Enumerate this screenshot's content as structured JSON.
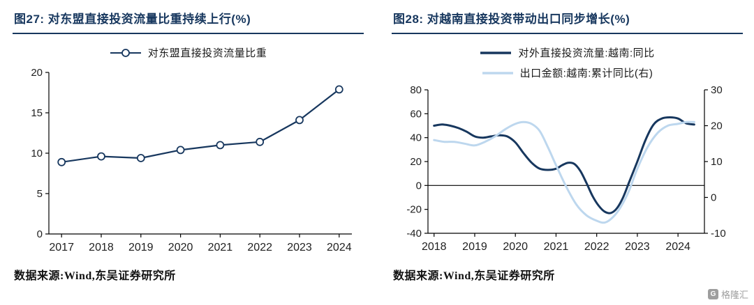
{
  "page": {
    "accent": "#17375E",
    "background": "#ffffff",
    "watermark_text": "格隆汇"
  },
  "panels": [
    {
      "title": "图27: 对东盟直接投资流量比重持续上行(%)",
      "source": "数据来源:Wind,东吴证券研究所"
    },
    {
      "title": "图28: 对越南直接投资带动出口同步增长(%)",
      "source": "数据来源:Wind,东吴证券研究所"
    }
  ],
  "chart_data": [
    {
      "type": "line",
      "title": "图27: 对东盟直接投资流量比重持续上行(%)",
      "xlabel": "",
      "ylabel": "",
      "categories": [
        2017,
        2018,
        2019,
        2020,
        2021,
        2022,
        2023,
        2024
      ],
      "ylim": [
        0,
        20
      ],
      "yticks": [
        0,
        5,
        10,
        15,
        20
      ],
      "grid": false,
      "legend_position": "top",
      "series": [
        {
          "name": "对东盟直接投资流量比重",
          "axis": "left",
          "color": "#17375E",
          "marker": "circle",
          "width": 2.2,
          "values": [
            8.9,
            9.6,
            9.4,
            10.4,
            11.0,
            11.4,
            14.1,
            17.9
          ]
        }
      ]
    },
    {
      "type": "line",
      "title": "图28: 对越南直接投资带动出口同步增长(%)",
      "xlabel": "",
      "ylabel": "",
      "xlim": [
        2017.85,
        2024.65
      ],
      "x_ticks": [
        2018,
        2019,
        2020,
        2021,
        2022,
        2023,
        2024
      ],
      "ylim": [
        -40,
        80
      ],
      "yticks": [
        -40,
        -20,
        0,
        20,
        40,
        60,
        80
      ],
      "ylim_right": [
        -10,
        30
      ],
      "yticks_right": [
        -10,
        0,
        10,
        20,
        30
      ],
      "zero_line": true,
      "grid": false,
      "legend_position": "top",
      "series": [
        {
          "name": "对外直接投资流量:越南:同比",
          "axis": "left",
          "color": "#17375E",
          "width": 3,
          "smooth": true,
          "x": [
            2018.0,
            2018.2,
            2018.4,
            2018.6,
            2018.8,
            2019.0,
            2019.2,
            2019.4,
            2019.6,
            2019.8,
            2020.0,
            2020.2,
            2020.4,
            2020.6,
            2020.8,
            2021.0,
            2021.15,
            2021.3,
            2021.45,
            2021.6,
            2021.75,
            2021.9,
            2022.05,
            2022.2,
            2022.35,
            2022.5,
            2022.65,
            2022.8,
            2023.0,
            2023.2,
            2023.4,
            2023.6,
            2023.8,
            2024.0,
            2024.2,
            2024.4
          ],
          "values": [
            50,
            51,
            50,
            48,
            45,
            41,
            40,
            41,
            42,
            41,
            36,
            27,
            19,
            14,
            13,
            14,
            17,
            19,
            18,
            12,
            2,
            -9,
            -17,
            -22,
            -23,
            -19,
            -10,
            3,
            20,
            38,
            51,
            56,
            57,
            56,
            52,
            51
          ]
        },
        {
          "name": "出口金额:越南:累计同比(右)",
          "axis": "right",
          "color": "#BDD7EE",
          "width": 3,
          "smooth": true,
          "x": [
            2018.0,
            2018.25,
            2018.5,
            2018.75,
            2019.0,
            2019.25,
            2019.5,
            2019.75,
            2020.0,
            2020.2,
            2020.4,
            2020.6,
            2020.8,
            2021.0,
            2021.25,
            2021.5,
            2021.75,
            2022.0,
            2022.2,
            2022.4,
            2022.6,
            2022.8,
            2023.0,
            2023.25,
            2023.5,
            2023.75,
            2024.0,
            2024.2,
            2024.4
          ],
          "values": [
            16,
            15.5,
            15.5,
            15,
            14.5,
            15.5,
            17,
            19,
            20.5,
            21,
            20.5,
            18.5,
            14,
            9,
            3,
            -2,
            -5,
            -6.5,
            -7,
            -5.5,
            -2.5,
            2,
            8,
            14,
            18,
            20,
            20.5,
            21,
            21
          ]
        }
      ]
    }
  ]
}
